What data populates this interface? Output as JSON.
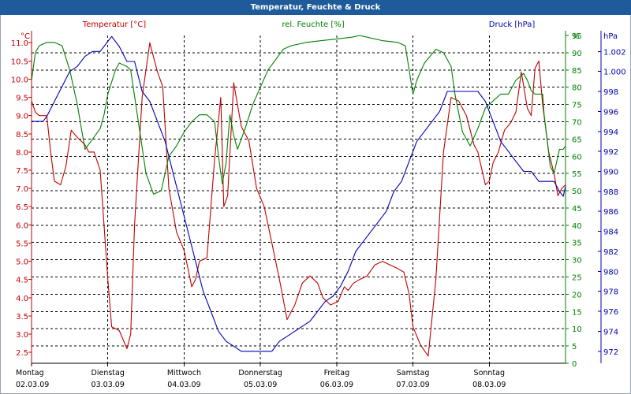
{
  "window": {
    "title": "Temperatur, Feuchte & Druck"
  },
  "colors": {
    "temperature": "#c00000",
    "humidity": "#008000",
    "pressure": "#0000b0",
    "titlebar": "#1f5b9a",
    "grid": "#000000"
  },
  "chart_data": {
    "type": "line",
    "title": "Temperatur, Feuchte & Druck",
    "grid": true,
    "x_days": [
      {
        "day": "Montag",
        "date": "02.03.09"
      },
      {
        "day": "Dienstag",
        "date": "03.03.09"
      },
      {
        "day": "Mittwoch",
        "date": "04.03.09"
      },
      {
        "day": "Donnerstag",
        "date": "05.03.09"
      },
      {
        "day": "Freitag",
        "date": "06.03.09"
      },
      {
        "day": "Samstag",
        "date": "07.03.09"
      },
      {
        "day": "Sonntag",
        "date": "08.03.09"
      }
    ],
    "x_range_days": [
      0,
      7
    ],
    "axes": {
      "left": {
        "title": "Temperatur [°C]",
        "unit": "°C",
        "range": [
          2.2,
          11.2
        ],
        "ticks": [
          "11.0",
          "10.5",
          "10.0",
          "9.5",
          "9.0",
          "8.5",
          "8.0",
          "7.5",
          "7.0",
          "6.5",
          "6.0",
          "5.5",
          "5.0",
          "4.5",
          "4.0",
          "3.5",
          "3.0",
          "2.5"
        ]
      },
      "middle": {
        "title": "rel. Feuchte [%]",
        "unit": "%",
        "range": [
          0,
          95
        ],
        "ticks": [
          "95",
          "90",
          "85",
          "80",
          "75",
          "70",
          "65",
          "60",
          "55",
          "50",
          "45",
          "40",
          "35",
          "30",
          "25",
          "20",
          "15",
          "10",
          "5",
          "0"
        ]
      },
      "right": {
        "title": "Druck [hPa]",
        "unit": "hPa",
        "range": [
          970.8,
          1003.6
        ],
        "ticks": [
          "1.002",
          "1.000",
          "998",
          "996",
          "994",
          "992",
          "990",
          "988",
          "986",
          "984",
          "982",
          "980",
          "978",
          "976",
          "974",
          "972"
        ]
      }
    },
    "series": [
      {
        "name": "Temperatur [°C]",
        "axis": "left",
        "points": [
          [
            0.0,
            9.4
          ],
          [
            0.05,
            9.1
          ],
          [
            0.1,
            9.0
          ],
          [
            0.2,
            9.0
          ],
          [
            0.25,
            8.0
          ],
          [
            0.3,
            7.2
          ],
          [
            0.38,
            7.1
          ],
          [
            0.45,
            7.6
          ],
          [
            0.52,
            8.6
          ],
          [
            0.6,
            8.4
          ],
          [
            0.7,
            8.2
          ],
          [
            0.75,
            8.0
          ],
          [
            0.82,
            8.0
          ],
          [
            0.9,
            7.5
          ],
          [
            0.95,
            6.0
          ],
          [
            1.0,
            4.5
          ],
          [
            1.05,
            3.2
          ],
          [
            1.15,
            3.1
          ],
          [
            1.25,
            2.6
          ],
          [
            1.3,
            3.0
          ],
          [
            1.35,
            6.0
          ],
          [
            1.45,
            9.5
          ],
          [
            1.55,
            11.0
          ],
          [
            1.65,
            10.2
          ],
          [
            1.72,
            9.8
          ],
          [
            1.8,
            7.0
          ],
          [
            1.9,
            5.8
          ],
          [
            2.0,
            5.3
          ],
          [
            2.05,
            4.8
          ],
          [
            2.1,
            4.3
          ],
          [
            2.15,
            4.5
          ],
          [
            2.2,
            5.0
          ],
          [
            2.3,
            5.1
          ],
          [
            2.4,
            7.8
          ],
          [
            2.48,
            9.5
          ],
          [
            2.52,
            6.5
          ],
          [
            2.57,
            6.8
          ],
          [
            2.65,
            9.9
          ],
          [
            2.7,
            9.3
          ],
          [
            2.75,
            8.7
          ],
          [
            2.85,
            8.3
          ],
          [
            2.95,
            7.0
          ],
          [
            3.05,
            6.5
          ],
          [
            3.15,
            5.5
          ],
          [
            3.25,
            4.5
          ],
          [
            3.35,
            3.4
          ],
          [
            3.45,
            3.8
          ],
          [
            3.55,
            4.4
          ],
          [
            3.65,
            4.6
          ],
          [
            3.75,
            4.4
          ],
          [
            3.82,
            4.0
          ],
          [
            3.92,
            3.8
          ],
          [
            4.02,
            3.9
          ],
          [
            4.1,
            4.3
          ],
          [
            4.15,
            4.2
          ],
          [
            4.22,
            4.4
          ],
          [
            4.3,
            4.5
          ],
          [
            4.4,
            4.6
          ],
          [
            4.5,
            4.9
          ],
          [
            4.6,
            5.0
          ],
          [
            4.7,
            4.9
          ],
          [
            4.8,
            4.8
          ],
          [
            4.88,
            4.7
          ],
          [
            4.95,
            4.1
          ],
          [
            5.0,
            3.2
          ],
          [
            5.1,
            2.7
          ],
          [
            5.2,
            2.4
          ],
          [
            5.3,
            4.5
          ],
          [
            5.4,
            8.0
          ],
          [
            5.5,
            9.5
          ],
          [
            5.6,
            9.4
          ],
          [
            5.7,
            9.0
          ],
          [
            5.8,
            8.2
          ],
          [
            5.85,
            8.0
          ],
          [
            5.95,
            7.1
          ],
          [
            6.0,
            7.2
          ],
          [
            6.05,
            7.7
          ],
          [
            6.12,
            8.0
          ],
          [
            6.2,
            8.6
          ],
          [
            6.28,
            8.8
          ],
          [
            6.35,
            9.1
          ],
          [
            6.42,
            10.2
          ],
          [
            6.5,
            9.2
          ],
          [
            6.55,
            9.0
          ],
          [
            6.6,
            10.3
          ],
          [
            6.65,
            10.5
          ],
          [
            6.7,
            9.3
          ],
          [
            6.78,
            8.0
          ],
          [
            6.85,
            7.4
          ],
          [
            6.9,
            6.8
          ],
          [
            6.95,
            7.0
          ],
          [
            7.0,
            7.1
          ]
        ]
      },
      {
        "name": "rel. Feuchte [%]",
        "axis": "middle",
        "points": [
          [
            0.0,
            82
          ],
          [
            0.05,
            90
          ],
          [
            0.1,
            92
          ],
          [
            0.2,
            93
          ],
          [
            0.3,
            93
          ],
          [
            0.4,
            92
          ],
          [
            0.5,
            85
          ],
          [
            0.6,
            75
          ],
          [
            0.7,
            62
          ],
          [
            0.8,
            65
          ],
          [
            0.9,
            68
          ],
          [
            0.95,
            72
          ],
          [
            1.0,
            78
          ],
          [
            1.1,
            85
          ],
          [
            1.15,
            87
          ],
          [
            1.25,
            86
          ],
          [
            1.3,
            85
          ],
          [
            1.4,
            70
          ],
          [
            1.5,
            55
          ],
          [
            1.6,
            49
          ],
          [
            1.7,
            50
          ],
          [
            1.8,
            60
          ],
          [
            1.9,
            63
          ],
          [
            2.0,
            67
          ],
          [
            2.1,
            70
          ],
          [
            2.2,
            72
          ],
          [
            2.3,
            72
          ],
          [
            2.4,
            70
          ],
          [
            2.45,
            60
          ],
          [
            2.5,
            52
          ],
          [
            2.55,
            58
          ],
          [
            2.6,
            72
          ],
          [
            2.65,
            66
          ],
          [
            2.7,
            62
          ],
          [
            2.8,
            68
          ],
          [
            2.9,
            75
          ],
          [
            3.0,
            80
          ],
          [
            3.1,
            85
          ],
          [
            3.2,
            88
          ],
          [
            3.3,
            91
          ],
          [
            3.4,
            92
          ],
          [
            3.6,
            93
          ],
          [
            3.8,
            93.5
          ],
          [
            4.0,
            94
          ],
          [
            4.2,
            94.5
          ],
          [
            4.3,
            95
          ],
          [
            4.4,
            94.5
          ],
          [
            4.6,
            93.5
          ],
          [
            4.8,
            93
          ],
          [
            4.9,
            92
          ],
          [
            4.95,
            85
          ],
          [
            5.0,
            78
          ],
          [
            5.05,
            82
          ],
          [
            5.15,
            87
          ],
          [
            5.3,
            91
          ],
          [
            5.4,
            90
          ],
          [
            5.5,
            86
          ],
          [
            5.55,
            78
          ],
          [
            5.65,
            67
          ],
          [
            5.75,
            63
          ],
          [
            5.85,
            68
          ],
          [
            5.95,
            74
          ],
          [
            6.05,
            76
          ],
          [
            6.15,
            78
          ],
          [
            6.25,
            78
          ],
          [
            6.35,
            82
          ],
          [
            6.45,
            84
          ],
          [
            6.5,
            82
          ],
          [
            6.55,
            79
          ],
          [
            6.6,
            78
          ],
          [
            6.7,
            78
          ],
          [
            6.72,
            72
          ],
          [
            6.8,
            57
          ],
          [
            6.85,
            55
          ],
          [
            6.92,
            62
          ],
          [
            6.97,
            62
          ],
          [
            7.0,
            63
          ]
        ]
      },
      {
        "name": "Druck [hPa]",
        "axis": "right",
        "points": [
          [
            0.0,
            995.0
          ],
          [
            0.05,
            995.0
          ],
          [
            0.1,
            995.0
          ],
          [
            0.15,
            995.0
          ],
          [
            0.2,
            995.5
          ],
          [
            0.3,
            997.0
          ],
          [
            0.4,
            998.5
          ],
          [
            0.5,
            1000.0
          ],
          [
            0.6,
            1000.5
          ],
          [
            0.7,
            1001.5
          ],
          [
            0.8,
            1002.0
          ],
          [
            0.9,
            1002.0
          ],
          [
            1.0,
            1003.0
          ],
          [
            1.05,
            1003.5
          ],
          [
            1.15,
            1002.5
          ],
          [
            1.25,
            1001.0
          ],
          [
            1.35,
            1001.0
          ],
          [
            1.45,
            998.0
          ],
          [
            1.55,
            997.0
          ],
          [
            1.65,
            995.0
          ],
          [
            1.75,
            993.0
          ],
          [
            1.85,
            990.0
          ],
          [
            1.95,
            987.0
          ],
          [
            2.05,
            984.0
          ],
          [
            2.15,
            981.0
          ],
          [
            2.25,
            978.0
          ],
          [
            2.35,
            976.0
          ],
          [
            2.45,
            974.0
          ],
          [
            2.55,
            973.0
          ],
          [
            2.65,
            972.5
          ],
          [
            2.75,
            972.0
          ],
          [
            2.85,
            972.0
          ],
          [
            2.95,
            972.0
          ],
          [
            3.05,
            972.0
          ],
          [
            3.15,
            972.0
          ],
          [
            3.25,
            973.0
          ],
          [
            3.35,
            973.5
          ],
          [
            3.45,
            974.0
          ],
          [
            3.55,
            974.5
          ],
          [
            3.65,
            975.0
          ],
          [
            3.75,
            976.0
          ],
          [
            3.85,
            977.0
          ],
          [
            3.95,
            977.5
          ],
          [
            4.05,
            978.5
          ],
          [
            4.15,
            980.0
          ],
          [
            4.25,
            982.0
          ],
          [
            4.35,
            983.0
          ],
          [
            4.45,
            984.0
          ],
          [
            4.55,
            985.0
          ],
          [
            4.65,
            986.0
          ],
          [
            4.75,
            988.0
          ],
          [
            4.85,
            989.0
          ],
          [
            4.95,
            991.0
          ],
          [
            5.05,
            993.0
          ],
          [
            5.15,
            994.0
          ],
          [
            5.25,
            995.0
          ],
          [
            5.35,
            996.0
          ],
          [
            5.45,
            998.0
          ],
          [
            5.55,
            998.0
          ],
          [
            5.65,
            998.0
          ],
          [
            5.75,
            998.0
          ],
          [
            5.85,
            998.0
          ],
          [
            5.95,
            997.0
          ],
          [
            6.05,
            995.0
          ],
          [
            6.15,
            993.0
          ],
          [
            6.25,
            992.0
          ],
          [
            6.35,
            991.0
          ],
          [
            6.45,
            990.0
          ],
          [
            6.55,
            990.0
          ],
          [
            6.65,
            989.0
          ],
          [
            6.75,
            989.0
          ],
          [
            6.85,
            989.0
          ],
          [
            6.92,
            988.0
          ],
          [
            6.97,
            987.5
          ],
          [
            7.0,
            988.5
          ]
        ]
      }
    ]
  }
}
